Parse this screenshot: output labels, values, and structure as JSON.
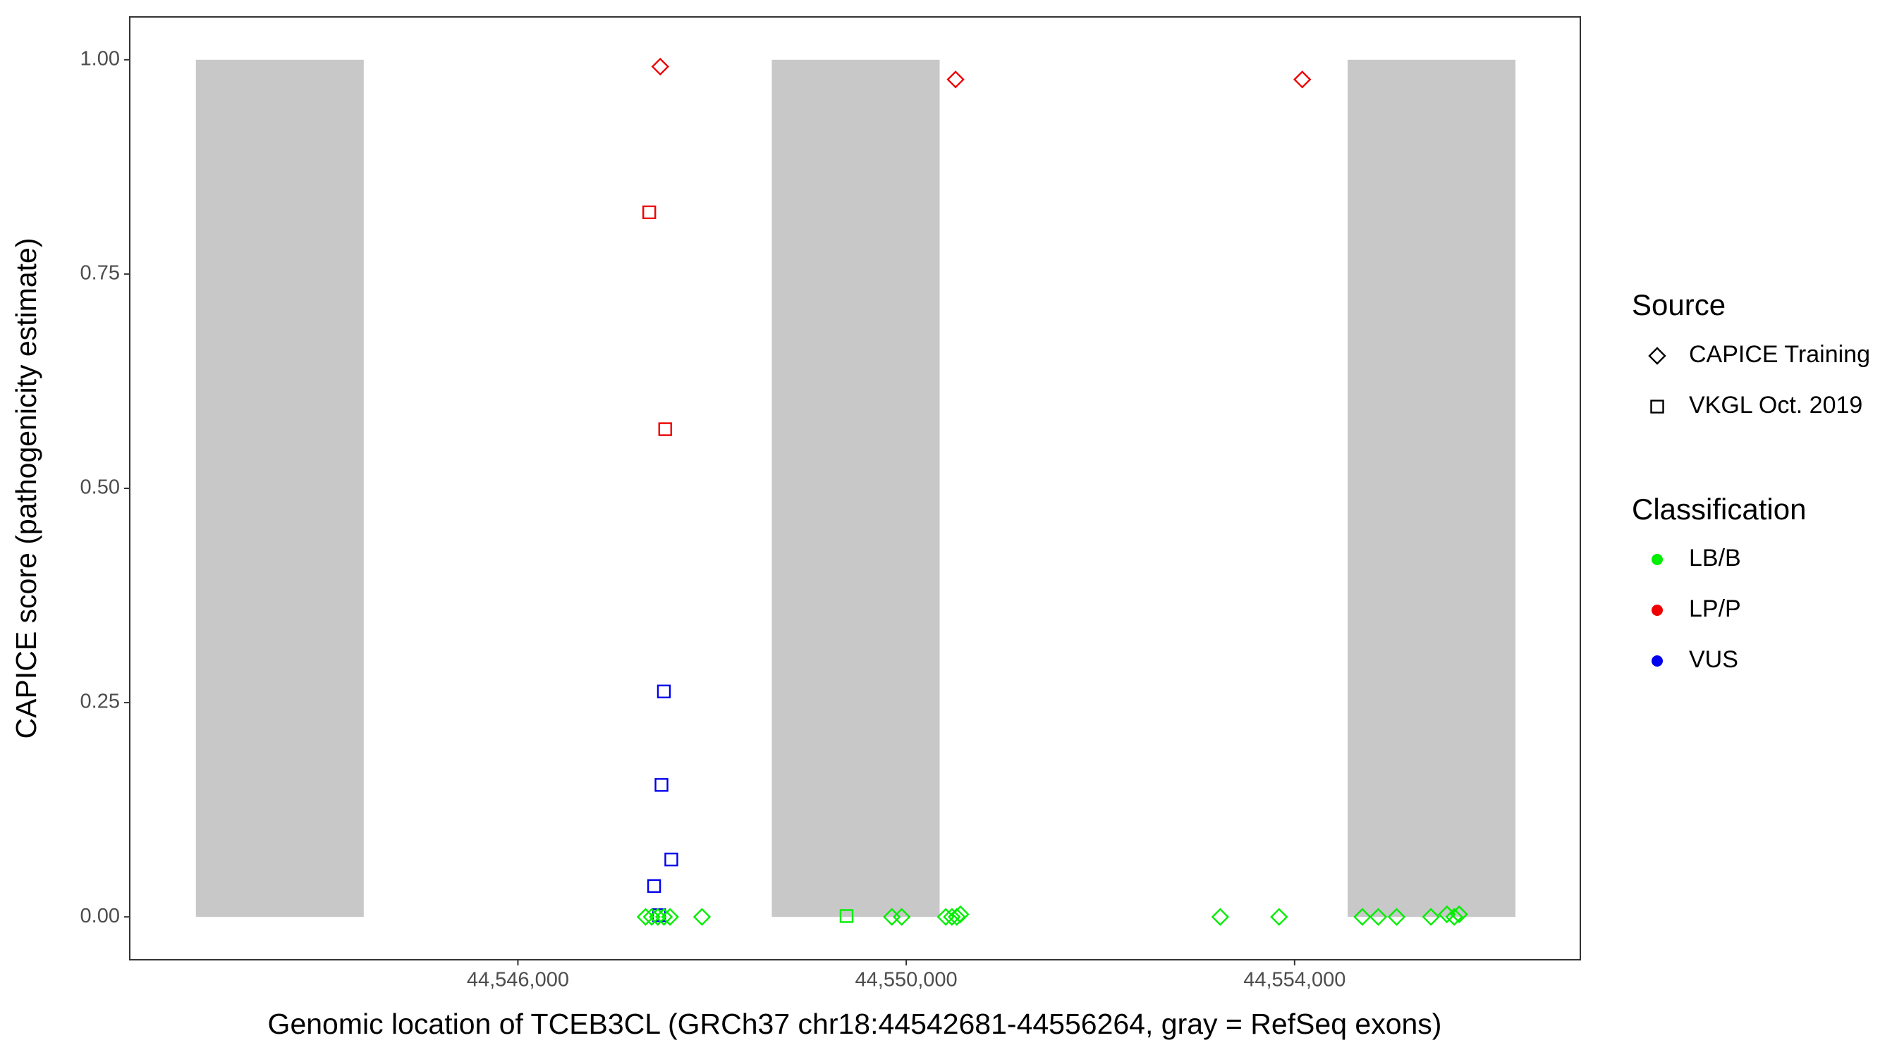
{
  "chart_data": {
    "type": "scatter",
    "x_label": "Genomic location of TCEB3CL (GRCh37 chr18:44542681-44556264, gray = RefSeq exons)",
    "y_label": "CAPICE score (pathogenicity estimate)",
    "xlim": [
      44542002,
      44556943
    ],
    "ylim": [
      -0.05,
      1.05
    ],
    "xticks": [
      {
        "value": 44546000,
        "label": "44,546,000"
      },
      {
        "value": 44550000,
        "label": "44,550,000"
      },
      {
        "value": 44554000,
        "label": "44,554,000"
      }
    ],
    "yticks": [
      {
        "value": 0,
        "label": "0.00"
      },
      {
        "value": 0.25,
        "label": "0.25"
      },
      {
        "value": 0.5,
        "label": "0.50"
      },
      {
        "value": 0.75,
        "label": "0.75"
      },
      {
        "value": 1,
        "label": "1.00"
      }
    ],
    "exons": {
      "starts": [
        44542683,
        44548615,
        44554546
      ],
      "ends": [
        44544412,
        44550344,
        44556275
      ],
      "ymin": 0,
      "ymax": 1,
      "color": "#c8c8c8"
    },
    "legends": [
      {
        "title": "Source",
        "items": [
          {
            "label": "CAPICE Training",
            "shape": "diamond"
          },
          {
            "label": "VKGL Oct. 2019",
            "shape": "square"
          }
        ]
      },
      {
        "title": "Classification",
        "items": [
          {
            "label": "LB/B",
            "color": "#00ee00"
          },
          {
            "label": "LP/P",
            "color": "#ee0000"
          },
          {
            "label": "VUS",
            "color": "#0000ee"
          }
        ]
      }
    ],
    "series": [
      {
        "source": "CAPICE Training",
        "classification": "LP/P",
        "x": [
          44547466,
          44550508,
          44554079
        ],
        "y": [
          0.992,
          0.977,
          0.977
        ]
      },
      {
        "source": "VKGL Oct. 2019",
        "classification": "LP/P",
        "x": [
          44547353,
          44547517
        ],
        "y": [
          0.822,
          0.569
        ]
      },
      {
        "source": "VKGL Oct. 2019",
        "classification": "VUS",
        "x": [
          44547504,
          44547479,
          44547580,
          44547403,
          44547454
        ],
        "y": [
          0.263,
          0.154,
          0.067,
          0.036,
          0.002
        ]
      },
      {
        "source": "VKGL Oct. 2019",
        "classification": "LB/B",
        "x": [
          44549385
        ],
        "y": [
          0.001
        ]
      },
      {
        "source": "CAPICE Training",
        "classification": "LB/B",
        "x": [
          44547315,
          44547378,
          44547441,
          44547504,
          44547567,
          44547896,
          44549852,
          44549953,
          44550407,
          44550470,
          44550520,
          44550558,
          44553234,
          44553840,
          44554698,
          44554862,
          44555051,
          44555404,
          44555569,
          44555644,
          44555695
        ],
        "y": [
          0,
          0,
          0,
          0,
          0,
          0,
          0,
          0,
          0,
          0,
          0,
          0.003,
          0,
          0,
          0,
          0,
          0,
          0,
          0.003,
          0,
          0.003
        ]
      }
    ]
  }
}
